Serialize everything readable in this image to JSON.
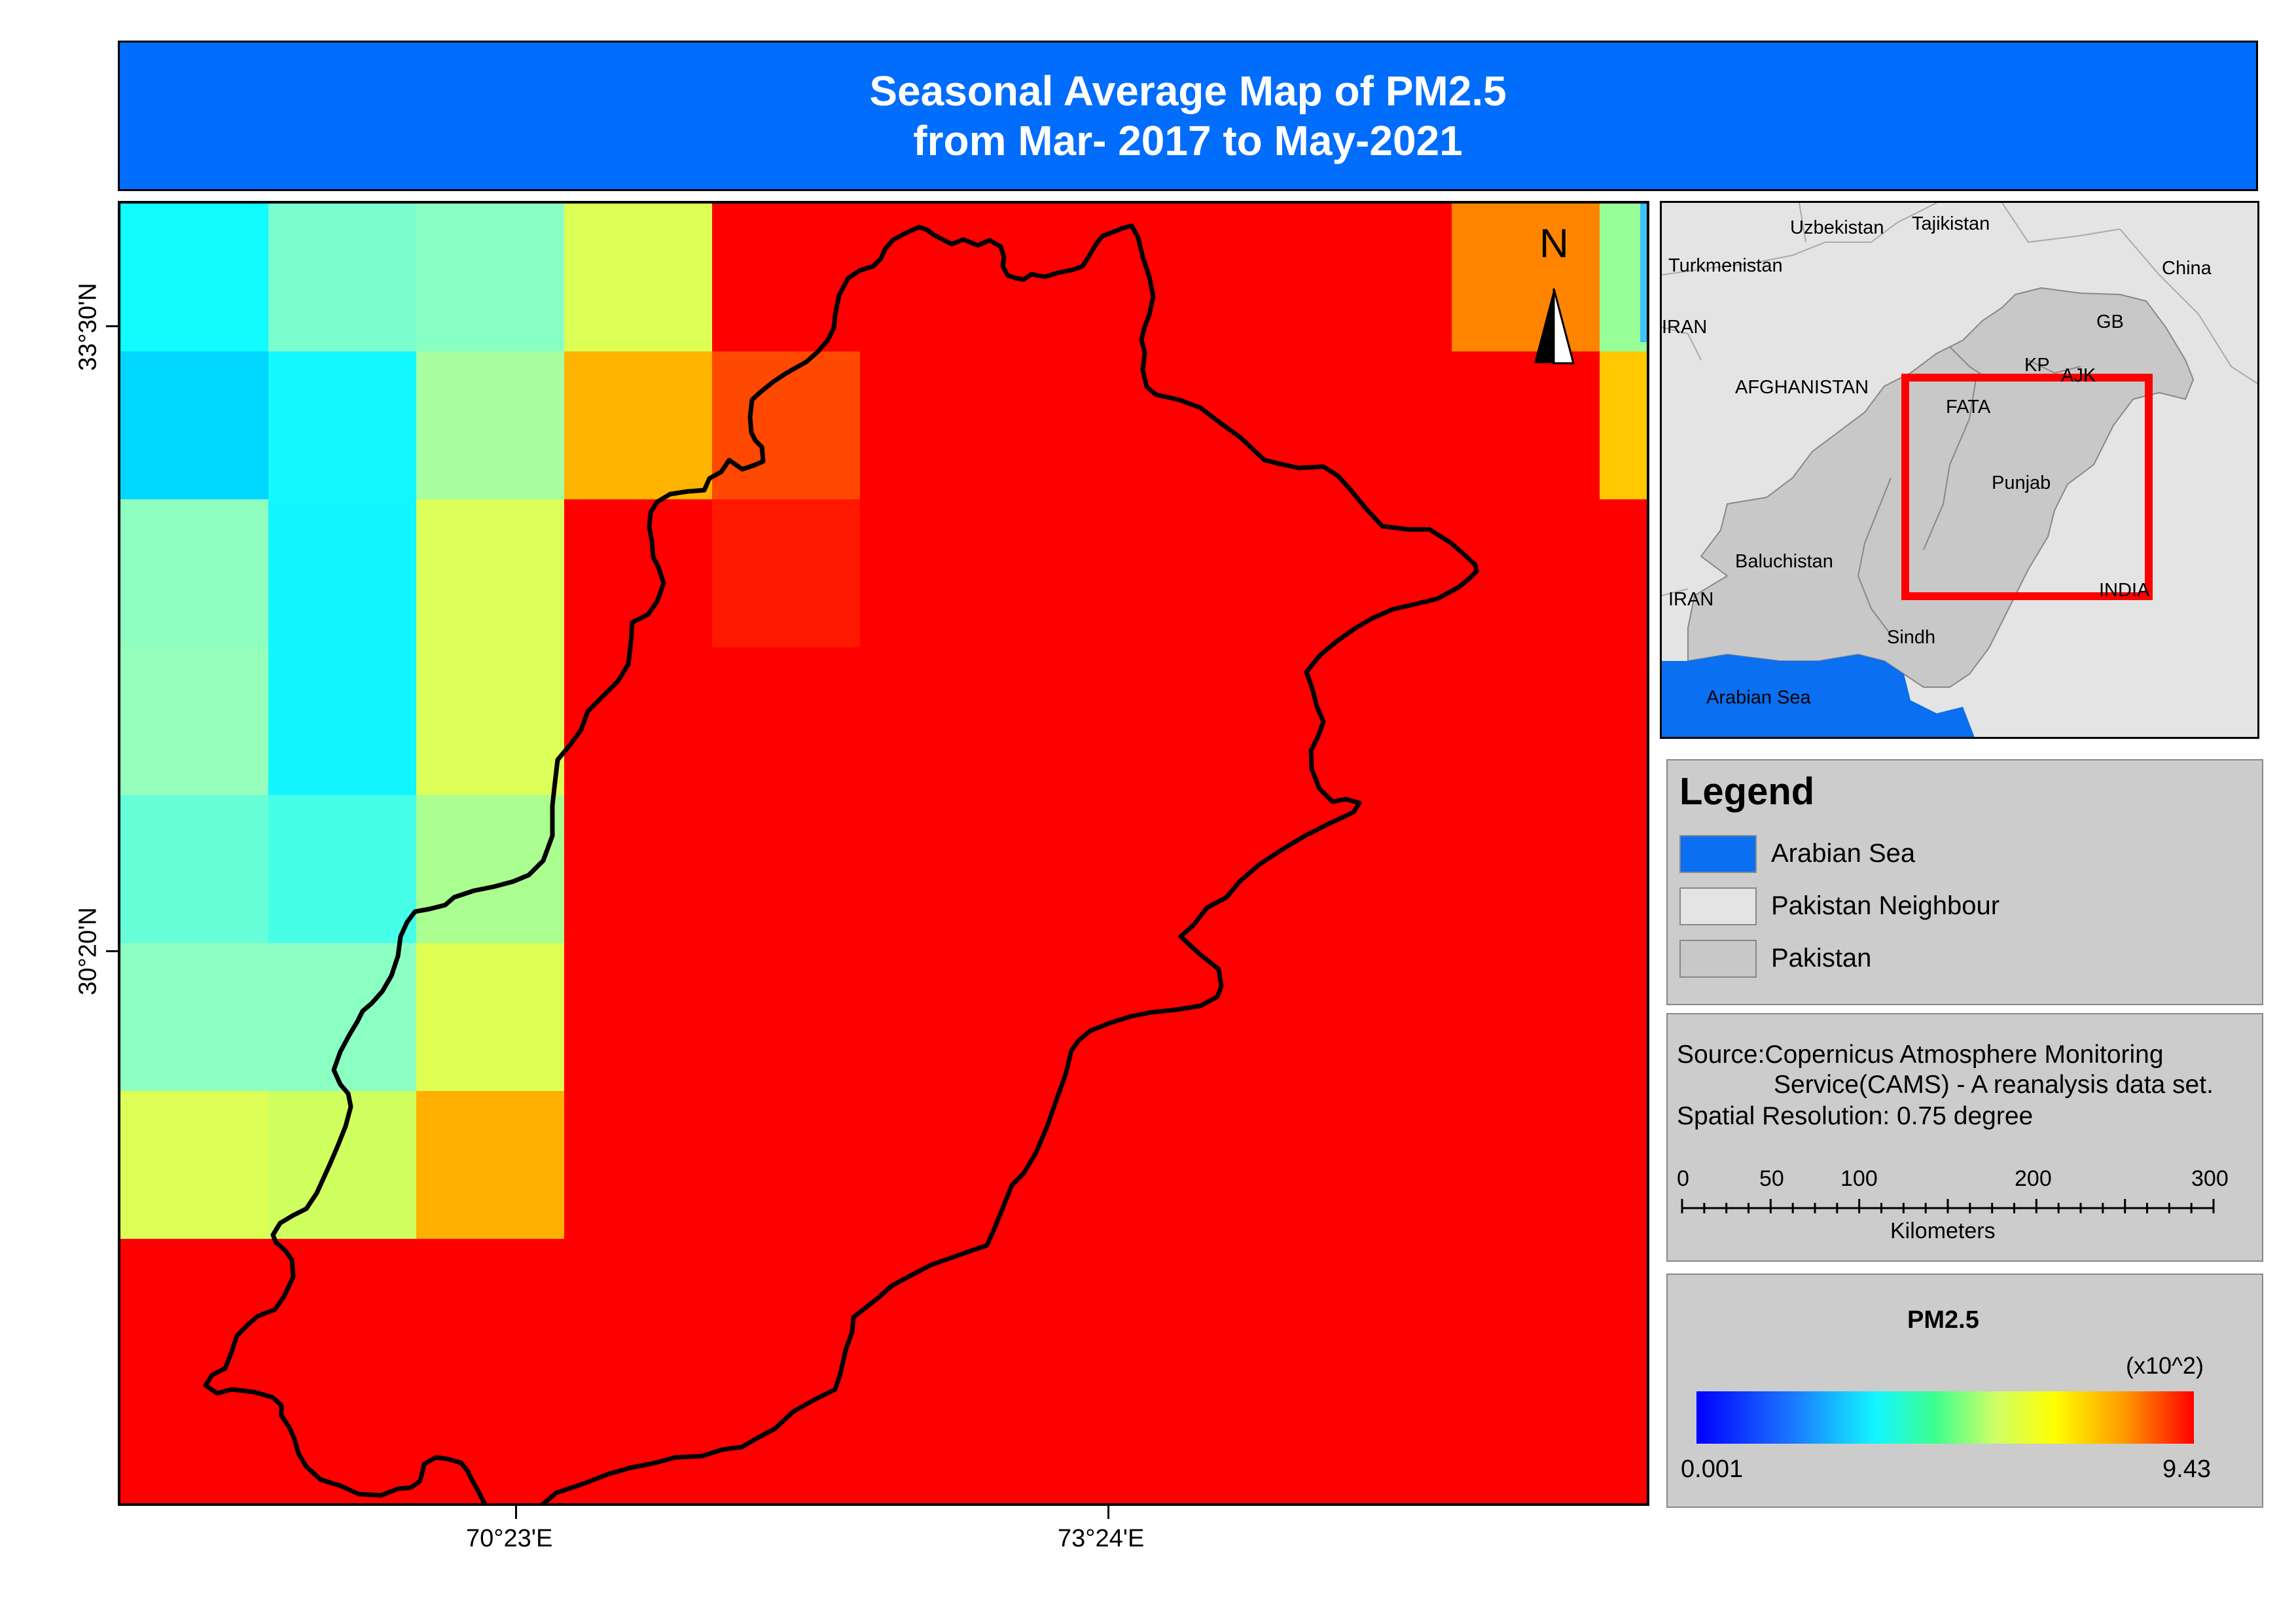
{
  "title": {
    "line1": "Seasonal Average Map of  PM2.5",
    "line2": "from Mar- 2017 to May-2021"
  },
  "map": {
    "north_label": "N",
    "lat_labels": [
      "33°30'N",
      "30°20'N"
    ],
    "lon_labels": [
      "70°23'E",
      "73°24'E"
    ],
    "grid": [
      [
        "#12fbff",
        "#7cffd0",
        "#8affc5",
        "#dcff55",
        "#ff0000",
        "#ff0000",
        "#ff0000",
        "#ff0000",
        "#ff0000",
        "#ff8400",
        "#99ff97"
      ],
      [
        "#00d7ff",
        "#11f9ff",
        "#a9ff9f",
        "#ffb400",
        "#ff4800",
        "#ff0000",
        "#ff0000",
        "#ff0000",
        "#ff0000",
        "#ff0000",
        "#ffc800"
      ],
      [
        "#8fffc0",
        "#12f6ff",
        "#dcff5a",
        "#ff0000",
        "#ff1800",
        "#ff0000",
        "#ff0000",
        "#ff0000",
        "#ff0000",
        "#ff0000",
        "#ff0000"
      ],
      [
        "#96ffbc",
        "#12f6ff",
        "#dcff5a",
        "#ff0000",
        "#ff0000",
        "#ff0000",
        "#ff0000",
        "#ff0000",
        "#ff0000",
        "#ff0000",
        "#ff0000"
      ],
      [
        "#66ffd8",
        "#47ffe9",
        "#aaff90",
        "#ff0000",
        "#ff0000",
        "#ff0000",
        "#ff0000",
        "#ff0000",
        "#ff0000",
        "#ff0000",
        "#ff0000"
      ],
      [
        "#8cffc2",
        "#8cffc2",
        "#e0ff52",
        "#ff0000",
        "#ff0000",
        "#ff0000",
        "#ff0000",
        "#ff0000",
        "#ff0000",
        "#ff0000",
        "#ff0000"
      ],
      [
        "#dcff55",
        "#d0ff60",
        "#ffb000",
        "#ff0000",
        "#ff0000",
        "#ff0000",
        "#ff0000",
        "#ff0000",
        "#ff0000",
        "#ff0000",
        "#ff0000"
      ],
      [
        "#ff0000",
        "#ff0000",
        "#ff0000",
        "#ff0000",
        "#ff0000",
        "#ff0000",
        "#ff0000",
        "#ff0000",
        "#ff0000",
        "#ff0000",
        "#ff0000"
      ],
      [
        "#ff0000",
        "#ff0000",
        "#ff0000",
        "#ff0000",
        "#ff0000",
        "#ff0000",
        "#ff0000",
        "#ff0000",
        "#ff0000",
        "#ff0000",
        "#ff0000"
      ]
    ],
    "background_color": "#ff0000"
  },
  "inset": {
    "labels": {
      "uzbekistan": "Uzbekistan",
      "tajikistan": "Tajikistan",
      "turkmenistan": "Turkmenistan",
      "china": "China",
      "iran_top": "IRAN",
      "gb": "GB",
      "kp": "KP",
      "ajk": "AJK",
      "afghanistan": "AFGHANISTAN",
      "fata": "FATA",
      "punjab": "Punjab",
      "baluchistan": "Baluchistan",
      "iran_bottom": "IRAN",
      "india": "INDIA",
      "sindh": "Sindh",
      "arabian_sea": "Arabian Sea"
    },
    "sea_color": "#0a6ff0",
    "pakistan_color": "#c8c8c8",
    "neighbour_color": "#e4e4e4",
    "highlight_color": "#ff0000"
  },
  "legend": {
    "title": "Legend",
    "items": [
      {
        "label": "Arabian Sea",
        "color": "#0a6ff0"
      },
      {
        "label": "Pakistan Neighbour",
        "color": "#e4e4e4"
      },
      {
        "label": "Pakistan",
        "color": "#c8c8c8"
      }
    ]
  },
  "source": {
    "line1": "Source:Copernicus Atmosphere Monitoring",
    "line2": "Service(CAMS) - A reanalysis data set.",
    "line3": "Spatial Resolution: 0.75  degree"
  },
  "scalebar": {
    "ticks": [
      "0",
      "50",
      "100",
      "200",
      "300"
    ],
    "unit": "Kilometers"
  },
  "colorbar": {
    "title": "PM2.5",
    "multiplier": "(x10^2)",
    "min": "0.001",
    "max": "9.43"
  }
}
